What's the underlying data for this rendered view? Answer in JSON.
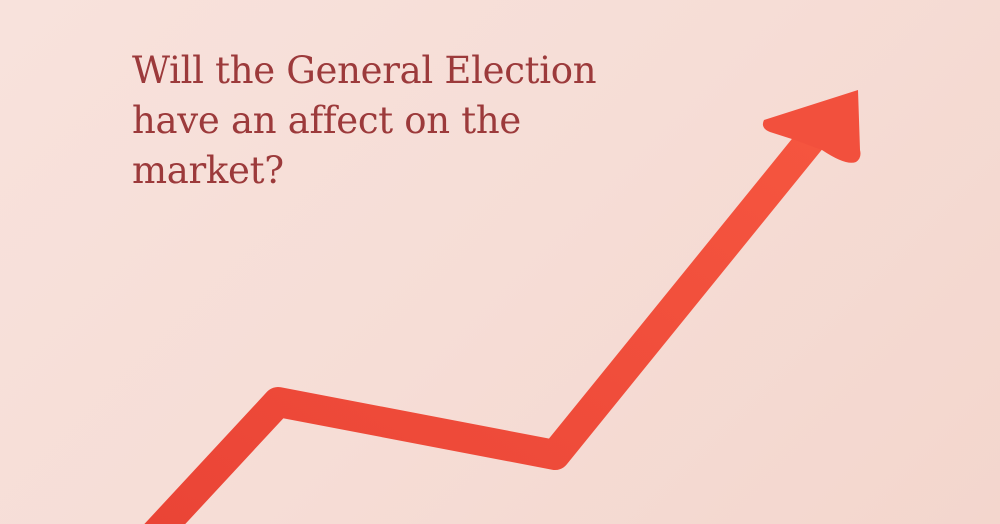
{
  "headline": {
    "lines": [
      "Will the General Election",
      "have an affect on the",
      "market?"
    ]
  },
  "colors": {
    "background": "#f7ded7",
    "headline": "#9c3a3b",
    "arrow": "#ef4a3b"
  },
  "graphic": {
    "icon": "rising-arrow-icon"
  }
}
